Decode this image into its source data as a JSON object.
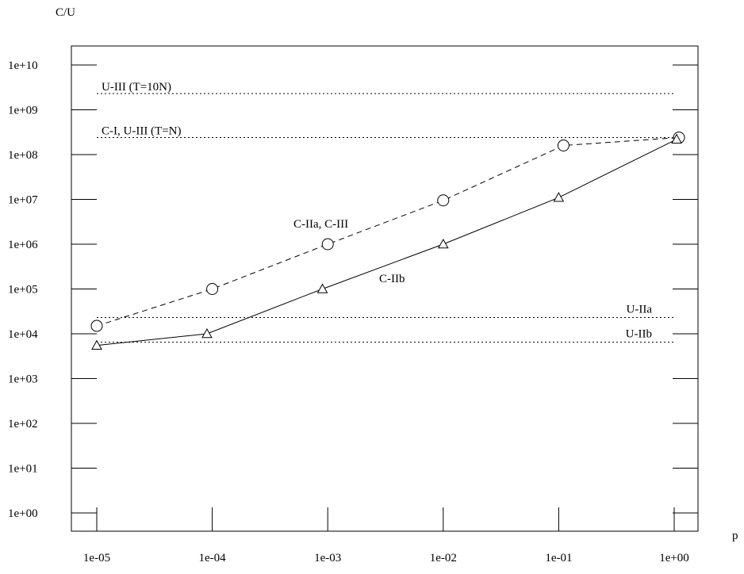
{
  "chart_data": {
    "type": "line",
    "xlabel": "p",
    "ylabel": "C/U",
    "xscale": "log",
    "yscale": "log",
    "xlim": [
      1e-05,
      1
    ],
    "ylim": [
      1,
      10000000000.0
    ],
    "xticks": [
      {
        "value": 1e-05,
        "label": "1e-05"
      },
      {
        "value": 0.0001,
        "label": "1e-04"
      },
      {
        "value": 0.001,
        "label": "1e-03"
      },
      {
        "value": 0.01,
        "label": "1e-02"
      },
      {
        "value": 0.1,
        "label": "1e-01"
      },
      {
        "value": 1,
        "label": "1e+00"
      }
    ],
    "yticks": [
      {
        "value": 1,
        "label": "1e+00"
      },
      {
        "value": 10,
        "label": "1e+01"
      },
      {
        "value": 100,
        "label": "1e+02"
      },
      {
        "value": 1000,
        "label": "1e+03"
      },
      {
        "value": 10000,
        "label": "1e+04"
      },
      {
        "value": 100000,
        "label": "1e+05"
      },
      {
        "value": 1000000,
        "label": "1e+06"
      },
      {
        "value": 10000000,
        "label": "1e+07"
      },
      {
        "value": 100000000,
        "label": "1e+08"
      },
      {
        "value": 1000000000,
        "label": "1e+09"
      },
      {
        "value": 10000000000,
        "label": "1e+10"
      }
    ],
    "grid": false,
    "series": [
      {
        "name": "C-IIa, C-III",
        "line_style": "dashed",
        "marker": "circle",
        "x": [
          1e-05,
          0.0001,
          0.001,
          0.01,
          0.11,
          1.1
        ],
        "y": [
          15000,
          100000,
          1000000,
          9500000,
          160000000,
          240000000
        ]
      },
      {
        "name": "C-IIb",
        "line_style": "solid",
        "marker": "triangle",
        "x": [
          1e-05,
          9e-05,
          0.0009,
          0.01,
          0.1,
          1.05
        ],
        "y": [
          5500,
          10000,
          100000,
          1000000,
          11000000,
          220000000
        ]
      }
    ],
    "reference_lines": [
      {
        "name": "U-III (T=10N)",
        "y": 2300000000,
        "line_style": "dotted"
      },
      {
        "name": "C-I, U-III (T=N)",
        "y": 240000000,
        "line_style": "dotted"
      },
      {
        "name": "U-IIa",
        "y": 23000,
        "line_style": "dotted"
      },
      {
        "name": "U-IIb",
        "y": 6500,
        "line_style": "dotted"
      }
    ]
  }
}
